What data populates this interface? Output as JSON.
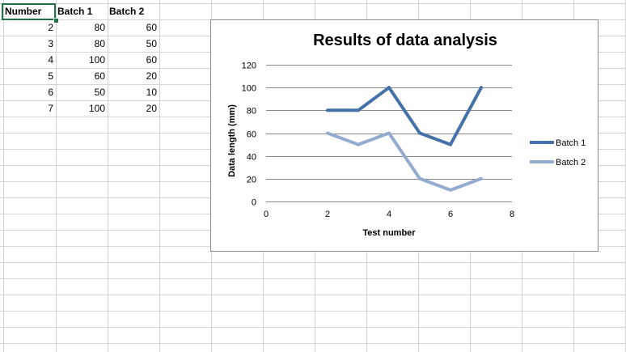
{
  "sheet": {
    "headers": [
      "Number",
      "Batch 1",
      "Batch 2"
    ],
    "rows": [
      [
        "2",
        "80",
        "60"
      ],
      [
        "3",
        "80",
        "50"
      ],
      [
        "4",
        "100",
        "60"
      ],
      [
        "5",
        "60",
        "20"
      ],
      [
        "6",
        "50",
        "10"
      ],
      [
        "7",
        "100",
        "20"
      ]
    ]
  },
  "colors": {
    "batch1": "#4472a8",
    "batch2": "#94abd0",
    "gridline": "#868686",
    "cell_border": "#d4d4d4",
    "selection": "#217346"
  },
  "chart_data": {
    "type": "line",
    "title": "Results of data analysis",
    "xlabel": "Test number",
    "ylabel": "Data length (mm)",
    "x": [
      2,
      3,
      4,
      5,
      6,
      7
    ],
    "xlim": [
      0,
      8
    ],
    "x_ticks": [
      0,
      2,
      4,
      6,
      8
    ],
    "ylim": [
      0,
      120
    ],
    "y_ticks": [
      0,
      20,
      40,
      60,
      80,
      100,
      120
    ],
    "grid": true,
    "legend_position": "right",
    "series": [
      {
        "name": "Batch 1",
        "values": [
          80,
          80,
          100,
          60,
          50,
          100
        ],
        "color": "#4472a8"
      },
      {
        "name": "Batch 2",
        "values": [
          60,
          50,
          60,
          20,
          10,
          20
        ],
        "color": "#94abd0"
      }
    ]
  }
}
